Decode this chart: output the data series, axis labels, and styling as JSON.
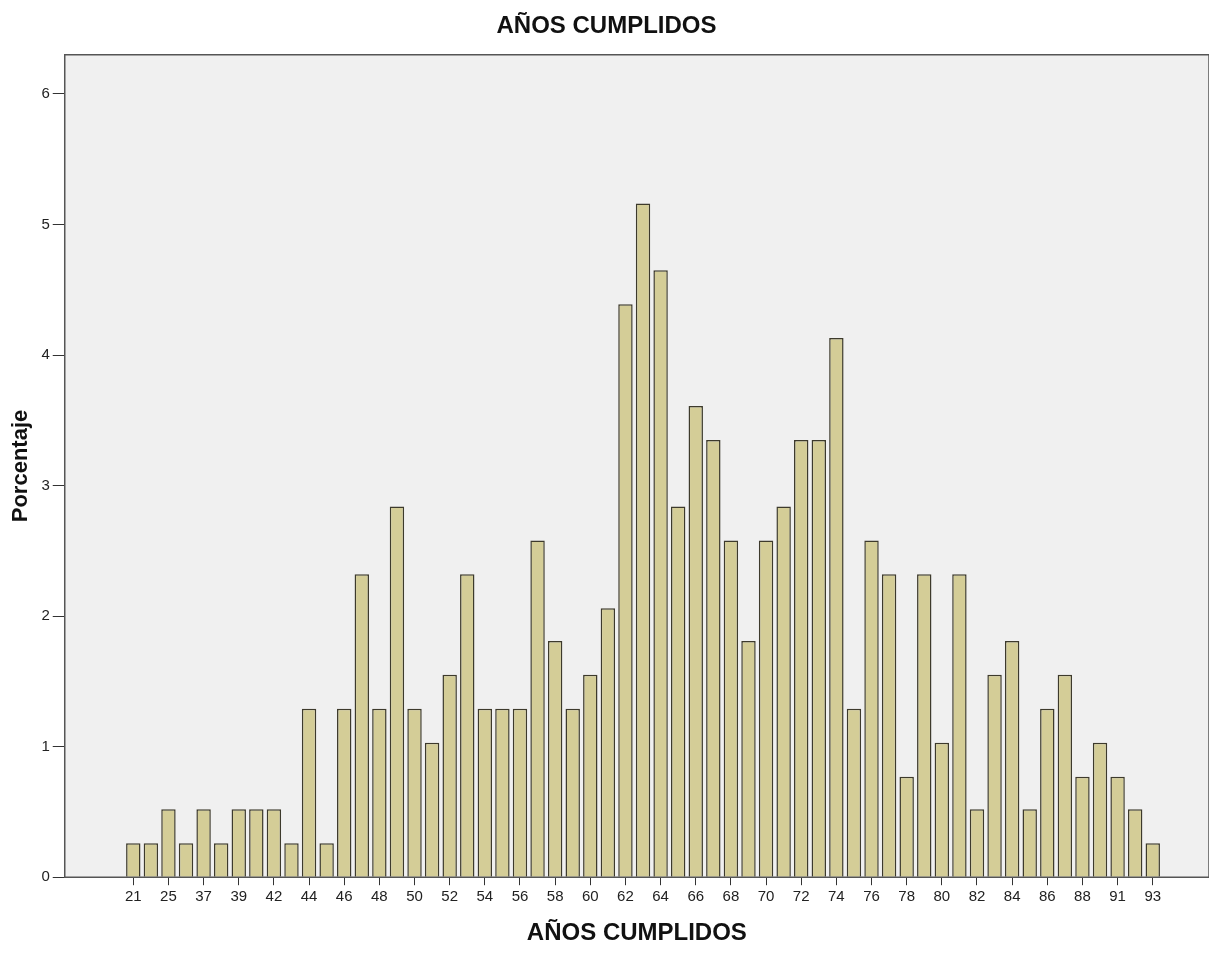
{
  "chart_data": {
    "type": "bar",
    "title": "AÑOS CUMPLIDOS",
    "xlabel": "AÑOS CUMPLIDOS",
    "ylabel": "Porcentaje",
    "categories": [
      "21",
      null,
      "25",
      null,
      "37",
      null,
      "39",
      null,
      "42",
      null,
      "44",
      null,
      "46",
      null,
      "48",
      null,
      "50",
      null,
      "52",
      null,
      "54",
      null,
      "56",
      null,
      "58",
      null,
      "60",
      null,
      "62",
      null,
      "64",
      null,
      "66",
      null,
      "68",
      null,
      "70",
      null,
      "72",
      null,
      "74",
      null,
      "76",
      null,
      "78",
      null,
      "80",
      null,
      "82",
      null,
      "84",
      null,
      "86",
      null,
      "88",
      null,
      "91",
      null,
      "93"
    ],
    "values": [
      0.26,
      0.26,
      0.52,
      0.26,
      0.52,
      0.26,
      0.52,
      0.52,
      0.52,
      0.26,
      1.29,
      0.26,
      1.29,
      2.32,
      1.29,
      2.84,
      1.29,
      1.03,
      1.55,
      2.32,
      1.29,
      1.29,
      1.29,
      2.58,
      1.81,
      1.29,
      1.55,
      2.06,
      4.39,
      5.16,
      4.65,
      2.84,
      3.61,
      3.35,
      2.58,
      1.81,
      2.58,
      2.84,
      3.35,
      3.35,
      4.13,
      1.29,
      2.58,
      2.32,
      0.77,
      2.32,
      1.03,
      2.32,
      0.52,
      1.55,
      1.81,
      0.52,
      1.29,
      1.55,
      0.77,
      1.03,
      0.77,
      0.52,
      0.26
    ],
    "color": "#d4cd97",
    "ylim": [
      0,
      6.3
    ],
    "yticks": [
      0,
      1,
      2,
      3,
      4,
      5,
      6
    ]
  }
}
